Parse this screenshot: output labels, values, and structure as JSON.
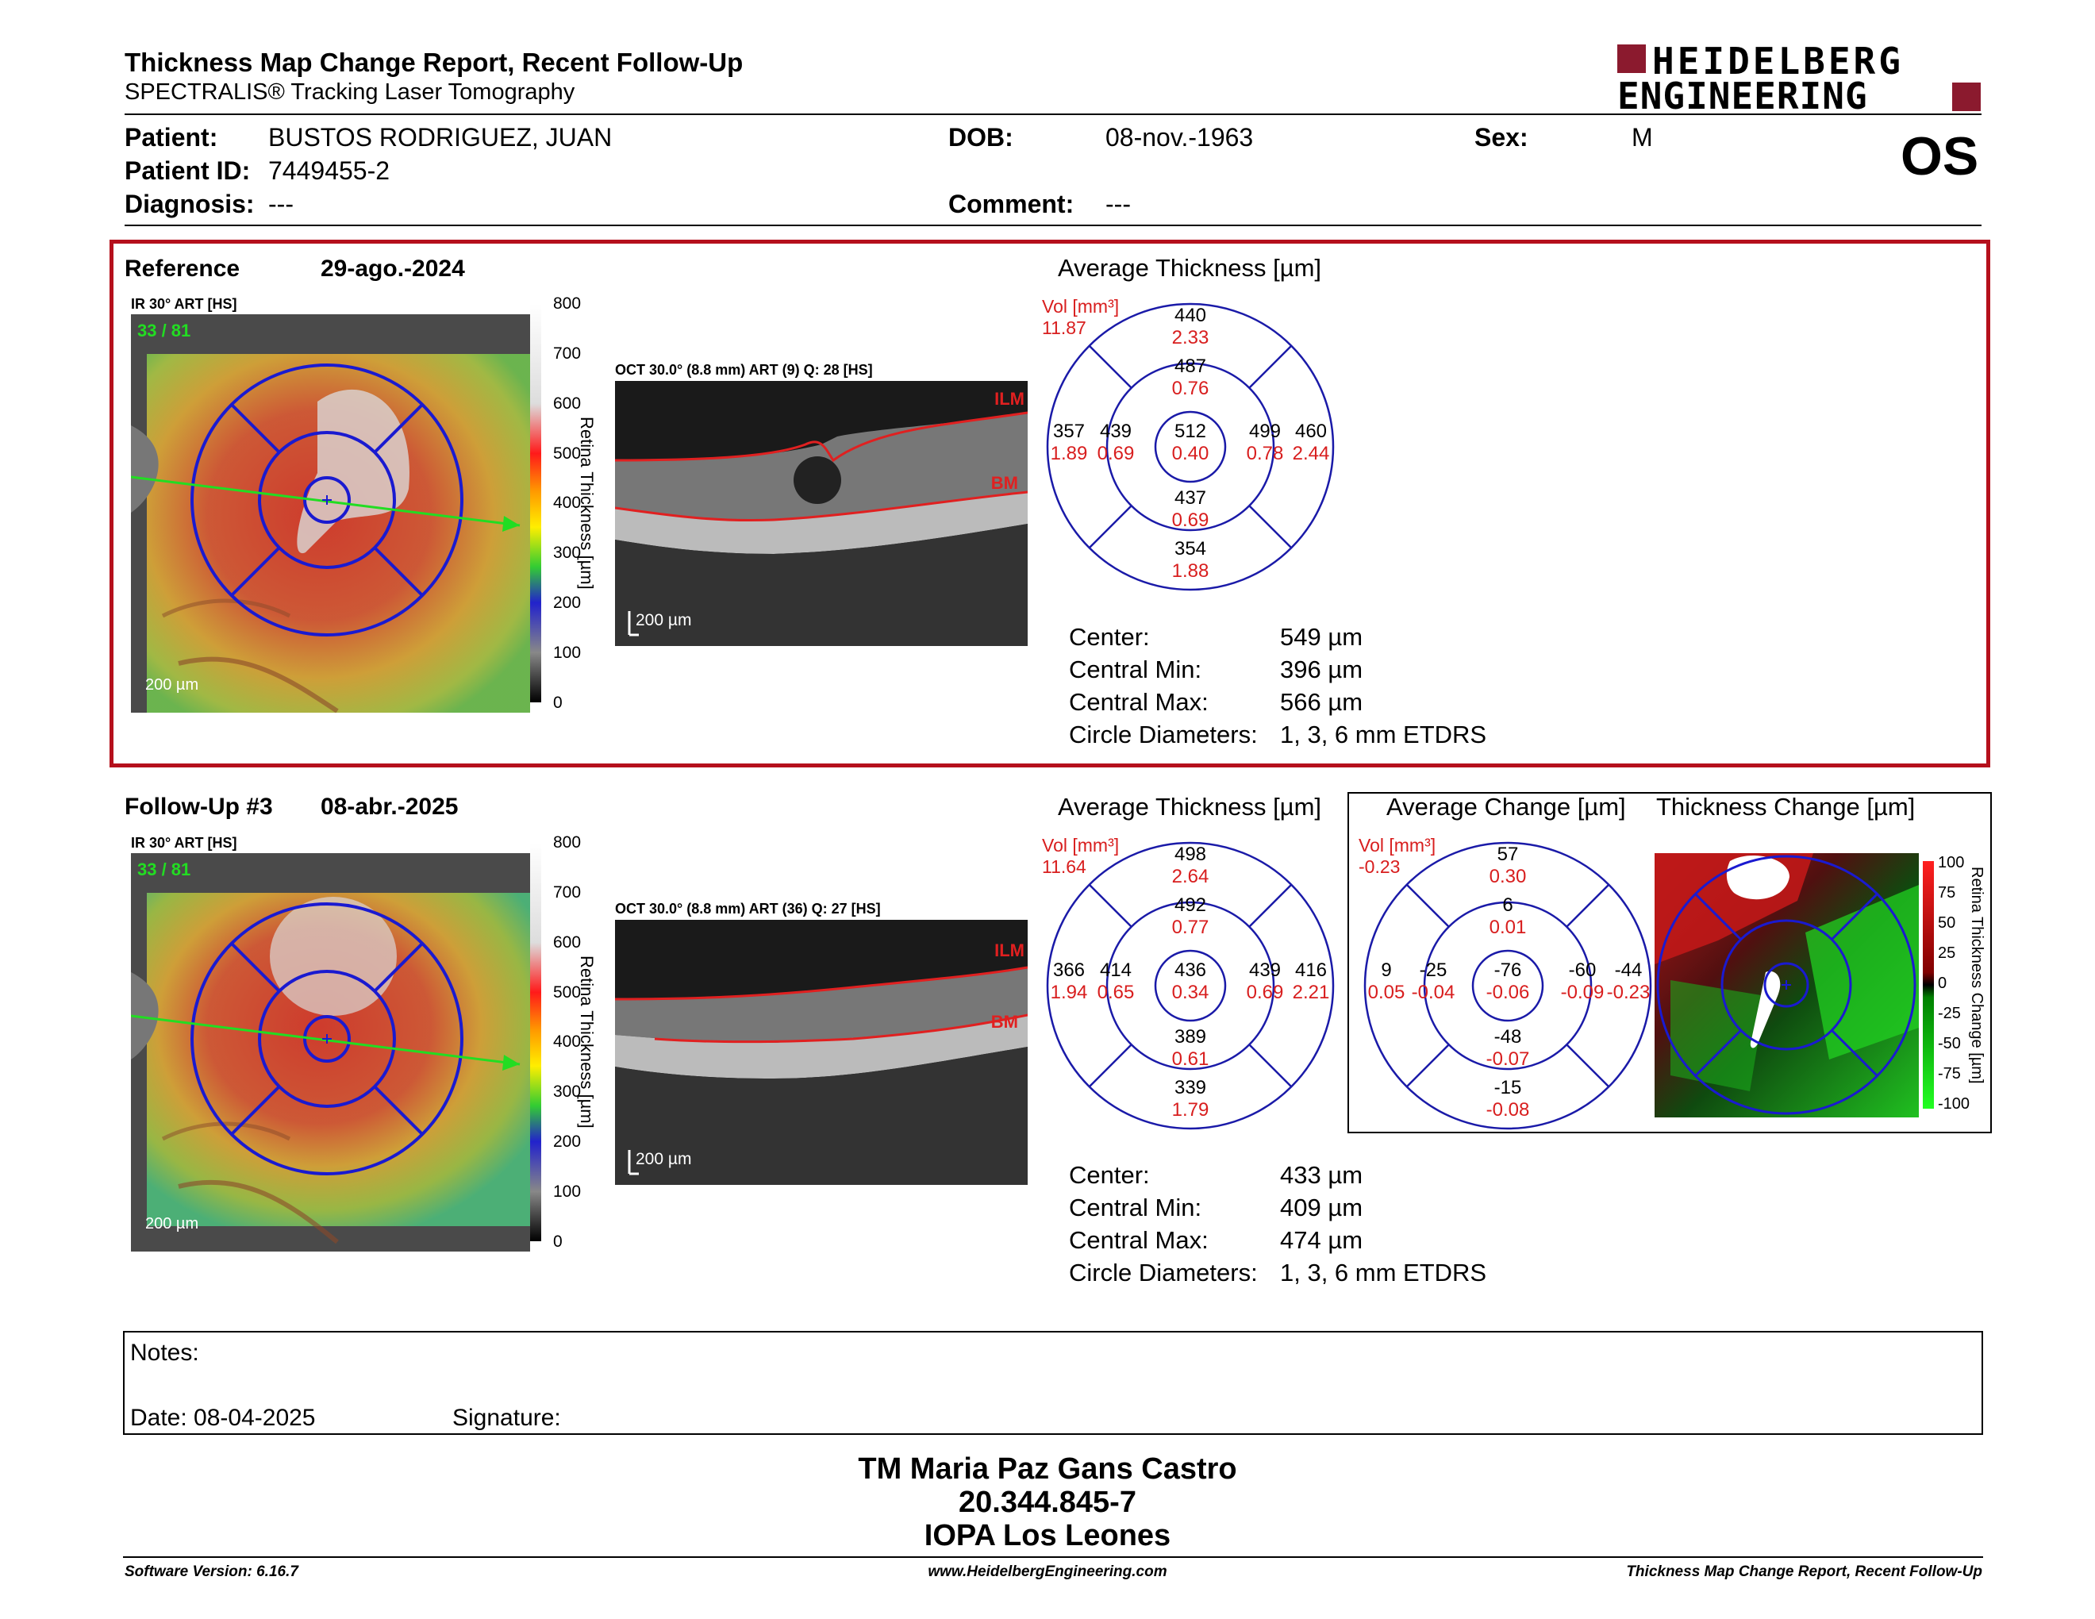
{
  "header": {
    "title": "Thickness Map Change Report, Recent Follow-Up",
    "subtitle": "SPECTRALIS® Tracking Laser Tomography",
    "logo_line1": "HEIDELBERG",
    "logo_line2": "ENGINEERING",
    "eye": "OS"
  },
  "patient": {
    "patient_label": "Patient:",
    "patient_value": "BUSTOS RODRIGUEZ, JUAN",
    "id_label": "Patient ID:",
    "id_value": "7449455-2",
    "diag_label": "Diagnosis:",
    "diag_value": "---",
    "dob_label": "DOB:",
    "dob_value": "08-nov.-1963",
    "comment_label": "Comment:",
    "comment_value": "---",
    "sex_label": "Sex:",
    "sex_value": "M"
  },
  "reference": {
    "label": "Reference",
    "date": "29-ago.-2024",
    "ir_label": "IR 30° ART [HS]",
    "ir_frame": "33 / 81",
    "oct_label": "OCT 30.0° (8.8 mm) ART (9) Q: 28 [HS]",
    "ilm": "ILM",
    "bm": "BM",
    "scale_ir": "200 µm",
    "scale_oct": "200 µm",
    "avg_title": "Average Thickness [µm]",
    "vol_label": "Vol [mm³]",
    "vol_value": "11.87",
    "sectors": {
      "outer_top": [
        "440",
        "2.33"
      ],
      "inner_top": [
        "487",
        "0.76"
      ],
      "outer_left": [
        "357",
        "1.89"
      ],
      "inner_left": [
        "439",
        "0.69"
      ],
      "center": [
        "512",
        "0.40"
      ],
      "inner_right": [
        "499",
        "0.78"
      ],
      "outer_right": [
        "460",
        "2.44"
      ],
      "inner_bottom": [
        "437",
        "0.69"
      ],
      "outer_bottom": [
        "354",
        "1.88"
      ]
    },
    "stats": [
      {
        "label": "Center:",
        "value": "549 µm"
      },
      {
        "label": "Central Min:",
        "value": "396 µm"
      },
      {
        "label": "Central Max:",
        "value": "566 µm"
      },
      {
        "label": "Circle Diameters:",
        "value": "1, 3, 6 mm ETDRS"
      }
    ]
  },
  "followup": {
    "label": "Follow-Up #3",
    "date": "08-abr.-2025",
    "ir_label": "IR 30° ART [HS]",
    "ir_frame": "33 / 81",
    "oct_label": "OCT 30.0° (8.8 mm) ART (36) Q: 27 [HS]",
    "ilm": "ILM",
    "bm": "BM",
    "scale_ir": "200 µm",
    "scale_oct": "200 µm",
    "avg_title": "Average Thickness [µm]",
    "vol_label": "Vol [mm³]",
    "vol_value": "11.64",
    "sectors": {
      "outer_top": [
        "498",
        "2.64"
      ],
      "inner_top": [
        "492",
        "0.77"
      ],
      "outer_left": [
        "366",
        "1.94"
      ],
      "inner_left": [
        "414",
        "0.65"
      ],
      "center": [
        "436",
        "0.34"
      ],
      "inner_right": [
        "439",
        "0.69"
      ],
      "outer_right": [
        "416",
        "2.21"
      ],
      "inner_bottom": [
        "389",
        "0.61"
      ],
      "outer_bottom": [
        "339",
        "1.79"
      ]
    },
    "stats": [
      {
        "label": "Center:",
        "value": "433 µm"
      },
      {
        "label": "Central Min:",
        "value": "409 µm"
      },
      {
        "label": "Central Max:",
        "value": "474 µm"
      },
      {
        "label": "Circle Diameters:",
        "value": "1, 3, 6 mm ETDRS"
      }
    ],
    "change_title": "Average Change [µm]",
    "change_vol_label": "Vol [mm³]",
    "change_vol_value": "-0.23",
    "change_sectors": {
      "outer_top": [
        "57",
        "0.30"
      ],
      "inner_top": [
        "6",
        "0.01"
      ],
      "outer_left": [
        "9",
        "0.05"
      ],
      "inner_left": [
        "-25",
        "-0.04"
      ],
      "center": [
        "-76",
        "-0.06"
      ],
      "inner_right": [
        "-60",
        "-0.09"
      ],
      "outer_right": [
        "-44",
        "-0.23"
      ],
      "inner_bottom": [
        "-48",
        "-0.07"
      ],
      "outer_bottom": [
        "-15",
        "-0.08"
      ]
    },
    "thickness_change_title": "Thickness Change [µm]",
    "change_scale": [
      "100",
      "75",
      "50",
      "25",
      "0",
      "-25",
      "-50",
      "-75",
      "-100"
    ],
    "change_axis_label": "Retina Thickness Change [µm]"
  },
  "thickness_scale": [
    "800",
    "700",
    "600",
    "500",
    "400",
    "300",
    "200",
    "100",
    "0"
  ],
  "thickness_axis_label": "Retina Thickness [µm]",
  "notes": {
    "label": "Notes:",
    "date_label": "Date: 08-04-2025",
    "signature_label": "Signature:"
  },
  "signer": {
    "name": "TM Maria Paz Gans Castro",
    "id": "20.344.845-7",
    "org": "IOPA Los Leones"
  },
  "footer": {
    "left": "Software Version: 6.16.7",
    "center": "www.HeidelbergEngineering.com",
    "right": "Thickness Map Change Report, Recent Follow-Up"
  },
  "colors": {
    "accent_red": "#b5101c",
    "etdrs_blue": "#1a1aa8",
    "value_red": "#d81e1e",
    "logo_red": "#8b1a2e"
  }
}
